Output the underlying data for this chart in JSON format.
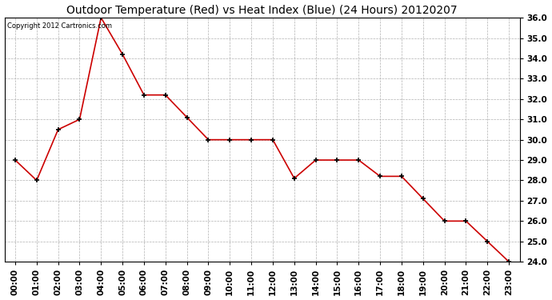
{
  "title": "Outdoor Temperature (Red) vs Heat Index (Blue) (24 Hours) 20120207",
  "copyright_text": "Copyright 2012 Cartronics.com",
  "x_labels": [
    "00:00",
    "01:00",
    "02:00",
    "03:00",
    "04:00",
    "05:00",
    "06:00",
    "07:00",
    "08:00",
    "09:00",
    "10:00",
    "11:00",
    "12:00",
    "13:00",
    "14:00",
    "15:00",
    "16:00",
    "17:00",
    "18:00",
    "19:00",
    "20:00",
    "21:00",
    "22:00",
    "23:00"
  ],
  "temp_red": [
    29.0,
    28.0,
    30.5,
    31.0,
    36.0,
    34.2,
    32.2,
    32.2,
    31.1,
    30.0,
    30.0,
    30.0,
    30.0,
    28.1,
    29.0,
    29.0,
    29.0,
    28.2,
    28.2,
    27.1,
    26.0,
    26.0,
    25.0,
    24.0
  ],
  "ylim_min": 24.0,
  "ylim_max": 36.0,
  "ytick_step": 1.0,
  "line_color_red": "#cc0000",
  "bg_color": "#ffffff",
  "grid_color": "#b0b0b0",
  "title_fontsize": 10,
  "copyright_fontsize": 6,
  "tick_fontsize": 7.5,
  "fig_width": 6.9,
  "fig_height": 3.75,
  "dpi": 100
}
